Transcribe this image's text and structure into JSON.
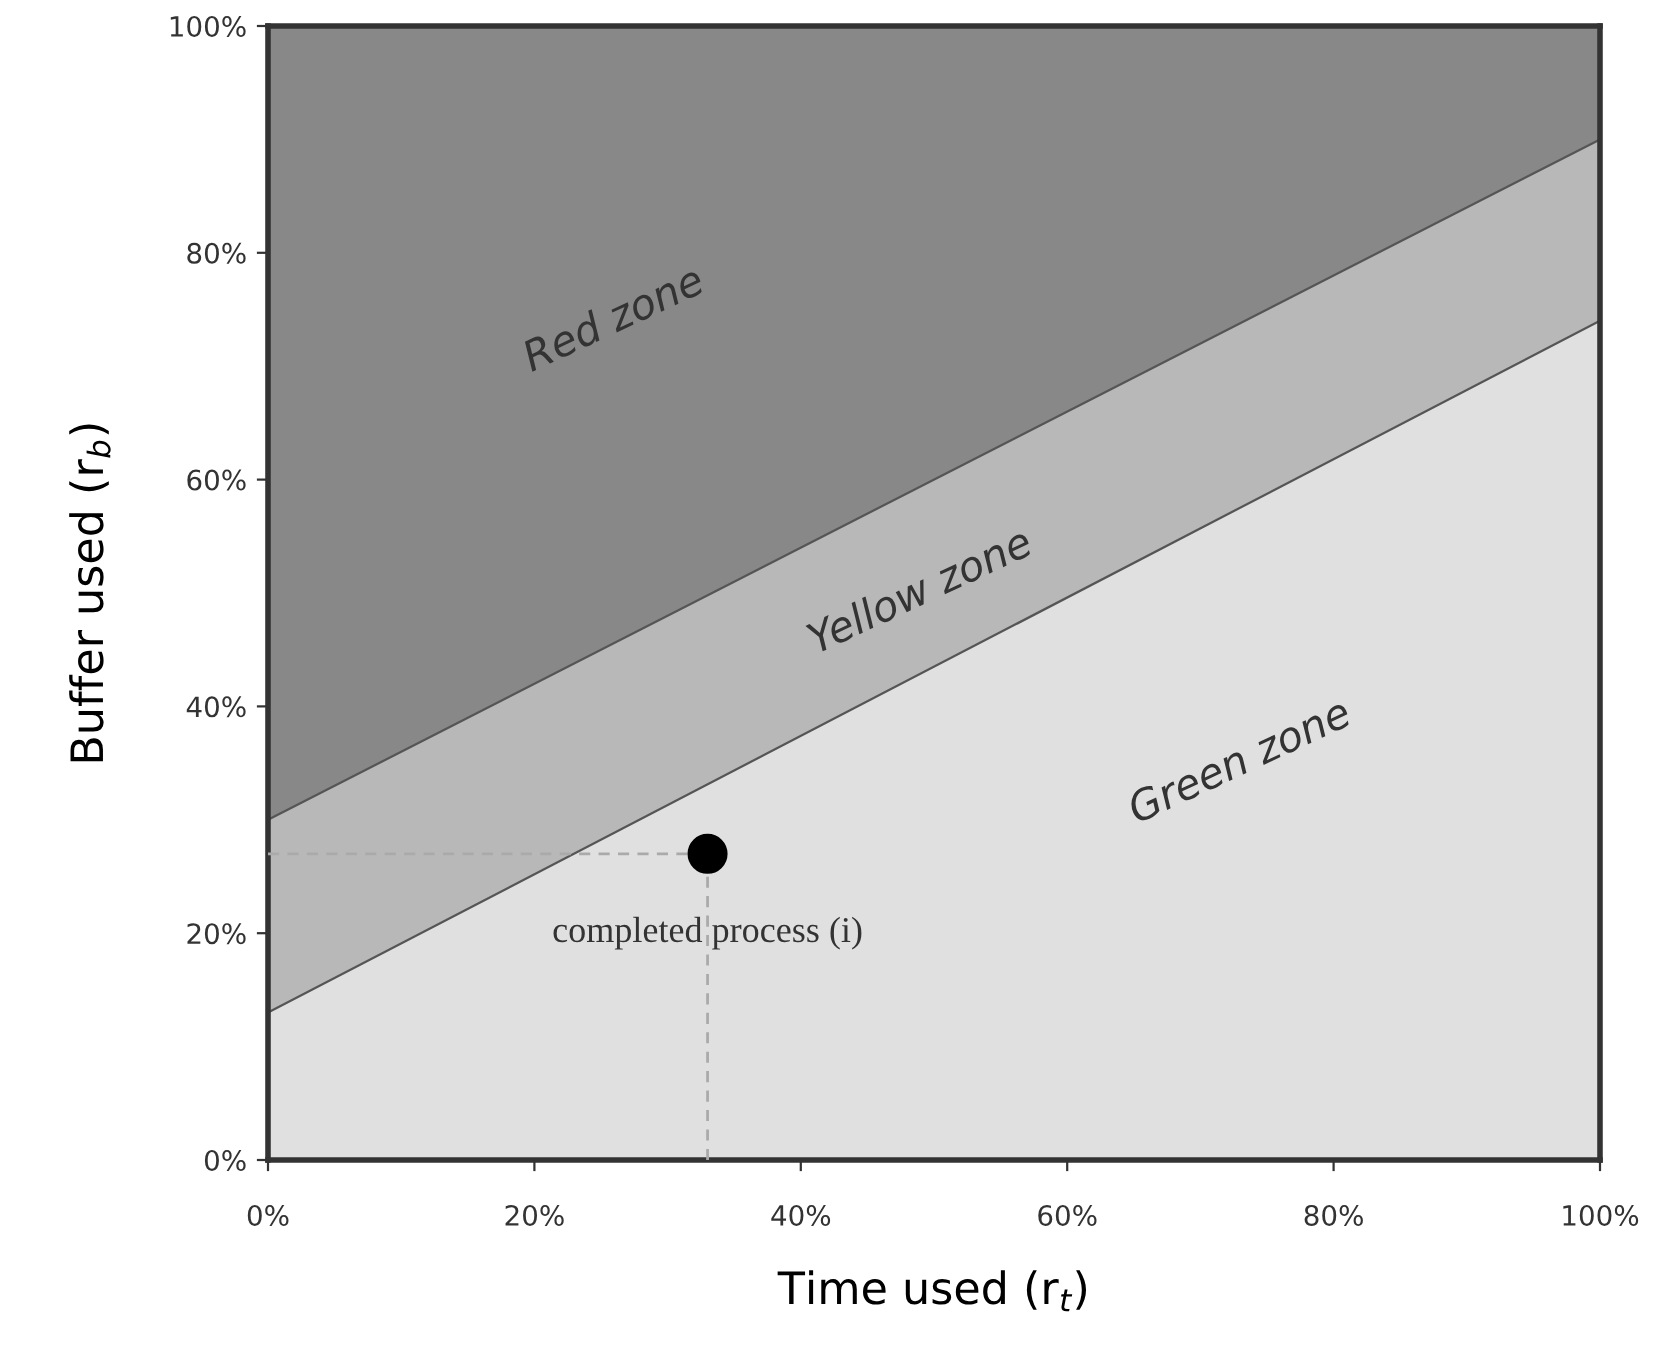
{
  "chart_data": {
    "type": "area",
    "stacked": true,
    "xlabel": "Time used (r$_{t}$)",
    "ylabel": "Buffer used (r$_{b}$)",
    "x": [
      0,
      100
    ],
    "series": [
      {
        "color": "#e0e0e0",
        "values": [
          13,
          74
        ]
      },
      {
        "color": "#b8b8b8",
        "values": [
          17,
          16
        ]
      },
      {
        "color": "#888888",
        "values": [
          70,
          10
        ]
      },
      {
        "type": "scatter",
        "color": "#000000",
        "x": [
          33
        ],
        "values": [
          27
        ],
        "marker": "circle"
      }
    ],
    "ref_lines": [
      {
        "axis": "x",
        "value": 33,
        "color": "#aaaaaa",
        "line_style": "dashed"
      },
      {
        "axis": "y",
        "value": 27,
        "color": "#aaaaaa",
        "line_style": "dashed"
      }
    ],
    "annotations": [
      "Red zone",
      "Yellow zone",
      "Green zone",
      {
        "text": "completed process (i)",
        "x": 33,
        "y": 20
      }
    ],
    "xlim": [
      0,
      100
    ],
    "ylim": [
      0,
      100
    ],
    "xticks": [
      {
        "value": 0,
        "label": "0%"
      },
      {
        "value": 20,
        "label": "20%"
      },
      {
        "value": 40,
        "label": "40%"
      },
      {
        "value": 60,
        "label": "60%"
      },
      {
        "value": 80,
        "label": "80%"
      },
      {
        "value": 100,
        "label": "100%"
      }
    ],
    "yticks": [
      {
        "value": 0,
        "label": "0%"
      },
      {
        "value": 20,
        "label": "20%"
      },
      {
        "value": 40,
        "label": "40%"
      },
      {
        "value": 60,
        "label": "60%"
      },
      {
        "value": 80,
        "label": "80%"
      },
      {
        "value": 100,
        "label": "100%"
      }
    ],
    "grid": false,
    "legend": false
  }
}
